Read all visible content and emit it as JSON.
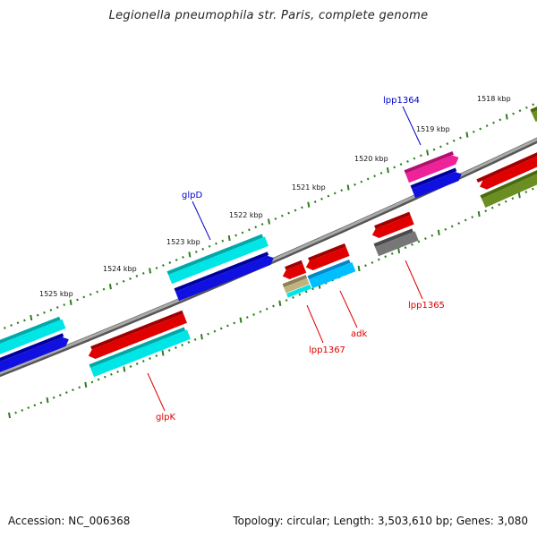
{
  "title": "Legionella pneumophila str. Paris, complete genome",
  "footer": {
    "accession": "Accession: NC_006368",
    "summary": "Topology: circular; Length: 3,503,610 bp; Genes: 3,080"
  },
  "colors": {
    "backbone": "#8a8a8a",
    "ticks": "#2e7d1e",
    "label_forward": "#0000cc",
    "label_reverse": "#dd0000"
  },
  "scale_labels": [
    "1518 kbp",
    "1519 kbp",
    "1520 kbp",
    "1521 kbp",
    "1522 kbp",
    "1523 kbp",
    "1524 kbp",
    "1525 kbp"
  ],
  "genes_outer": [
    {
      "color": "#00e5e5",
      "dark": "#00a8a8"
    },
    {
      "color": "#1010e0",
      "dark": "#0000a0"
    },
    {
      "color": "#00e5e5",
      "dark": "#00a8a8"
    },
    {
      "color": "#1010e0",
      "dark": "#0000a0"
    },
    {
      "color": "#ee2299",
      "dark": "#b0106e"
    },
    {
      "color": "#1010e0",
      "dark": "#0000a0"
    },
    {
      "color": "#e00000",
      "dark": "#a00000"
    },
    {
      "color": "#6b8e23",
      "dark": "#4b6a10"
    },
    {
      "color": "#6b8e23",
      "dark": "#4b6a10"
    }
  ],
  "genes_inner": [
    {
      "color": "#e00000",
      "dark": "#a00000"
    },
    {
      "color": "#00e5e5",
      "dark": "#00a8a8"
    },
    {
      "color": "#e00000",
      "dark": "#a00000"
    },
    {
      "color": "#c2b280",
      "dark": "#8e8055"
    },
    {
      "color": "#00e5e5",
      "dark": "#00a8a8"
    },
    {
      "color": "#e00000",
      "dark": "#a00000"
    },
    {
      "color": "#00bfff",
      "dark": "#0088cc"
    },
    {
      "color": "#e00000",
      "dark": "#a00000"
    },
    {
      "color": "#777777",
      "dark": "#4a4a4a"
    }
  ],
  "gene_labels": [
    {
      "text": "lpp1364",
      "strand": "forward"
    },
    {
      "text": "glpD",
      "strand": "forward"
    },
    {
      "text": "lpp1365",
      "strand": "reverse"
    },
    {
      "text": "adk",
      "strand": "reverse"
    },
    {
      "text": "lpp1367",
      "strand": "reverse"
    },
    {
      "text": "glpK",
      "strand": "reverse"
    }
  ]
}
